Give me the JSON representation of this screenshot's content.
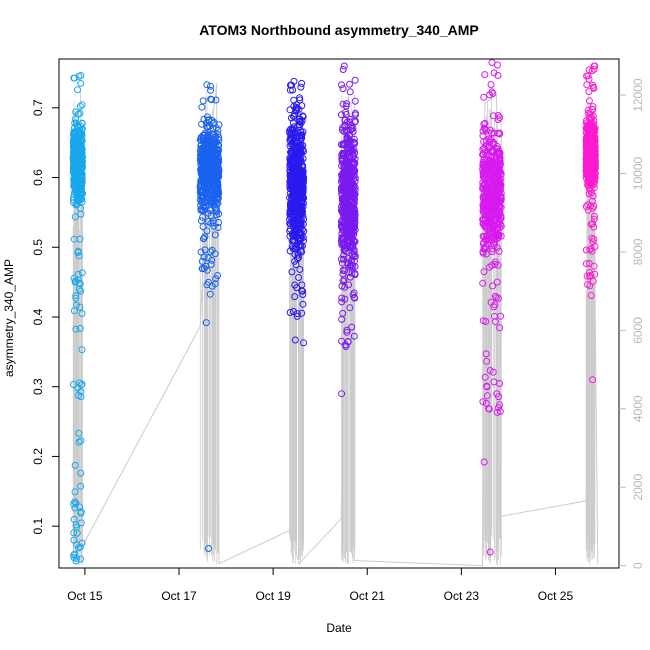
{
  "chart_data": {
    "type": "scatter",
    "title": "ATOM3 Northbound asymmetry_340_AMP",
    "xlabel": "Date",
    "ylabel": "asymmetry_340_AMP",
    "x_ticks": [
      "Oct 15",
      "Oct 17",
      "Oct 19",
      "Oct 21",
      "Oct 23",
      "Oct 25"
    ],
    "x_tick_days": [
      15,
      17,
      19,
      21,
      23,
      25
    ],
    "xlim_days": [
      14.45,
      26.35
    ],
    "y_ticks": [
      0.1,
      0.2,
      0.3,
      0.4,
      0.5,
      0.6,
      0.7
    ],
    "ylim": [
      0.04,
      0.77
    ],
    "y2_ticks": [
      0,
      2000,
      4000,
      6000,
      8000,
      10000,
      12000
    ],
    "y2lim": [
      -60,
      12920
    ],
    "grid": false,
    "legend": "none",
    "series": [
      {
        "day_range": [
          14.75,
          14.95
        ],
        "color": "#1aa7ec",
        "core": [
          0.54,
          0.7
        ],
        "extent": [
          0.05,
          0.75
        ],
        "outliers": [
          0.405,
          0.293,
          0.08,
          0.07,
          0.06,
          0.055,
          0.05,
          0.745,
          0.735
        ]
      },
      {
        "day_range": [
          17.45,
          17.85
        ],
        "color": "#1a62ee",
        "core": [
          0.52,
          0.7
        ],
        "extent": [
          0.43,
          0.735
        ],
        "outliers": [
          0.392,
          0.068,
          0.733,
          0.725
        ]
      },
      {
        "day_range": [
          19.35,
          19.65
        ],
        "color": "#2a1aef",
        "core": [
          0.45,
          0.73
        ],
        "extent": [
          0.4,
          0.74
        ],
        "outliers": [
          0.367,
          0.363
        ]
      },
      {
        "day_range": [
          20.45,
          20.75
        ],
        "color": "#7a1aef",
        "core": [
          0.42,
          0.73
        ],
        "extent": [
          0.35,
          0.76
        ],
        "outliers": [
          0.29,
          0.36,
          0.76,
          0.755
        ]
      },
      {
        "day_range": [
          23.45,
          23.85
        ],
        "color": "#d81aef",
        "core": [
          0.46,
          0.7
        ],
        "extent": [
          0.25,
          0.765
        ],
        "outliers": [
          0.192,
          0.063,
          0.765,
          0.29,
          0.27
        ]
      },
      {
        "day_range": [
          25.65,
          25.85
        ],
        "color": "#ff1ad0",
        "core": [
          0.57,
          0.7
        ],
        "extent": [
          0.43,
          0.76
        ],
        "outliers": [
          0.31,
          0.76,
          0.76
        ]
      }
    ],
    "sample_index_line": {
      "color": "#cccccc",
      "path_points": [
        [
          14.78,
          6200
        ],
        [
          14.95,
          500
        ],
        [
          17.45,
          6100
        ],
        [
          17.6,
          10000
        ],
        [
          17.8,
          12300
        ],
        [
          17.85,
          50
        ],
        [
          19.35,
          900
        ],
        [
          19.55,
          50
        ],
        [
          20.45,
          1200
        ],
        [
          20.6,
          12000
        ],
        [
          20.7,
          130
        ],
        [
          23.45,
          0
        ],
        [
          23.5,
          11800
        ],
        [
          23.75,
          12000
        ],
        [
          23.8,
          1250
        ],
        [
          25.65,
          1650
        ],
        [
          25.8,
          11600
        ],
        [
          25.9,
          50
        ]
      ]
    }
  }
}
